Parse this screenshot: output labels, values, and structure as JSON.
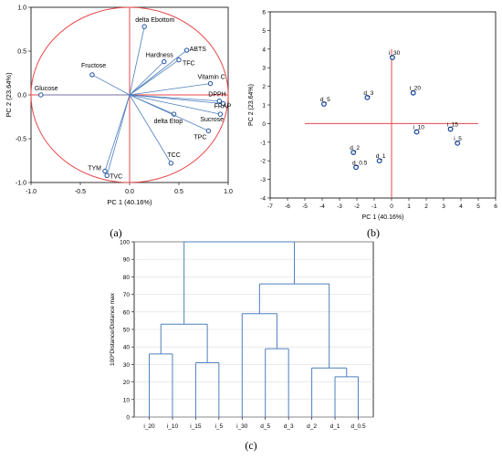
{
  "panel_labels": {
    "a": "(a)",
    "b": "(b)",
    "c": "(c)"
  },
  "colors": {
    "red": "#e8474b",
    "blue": "#1e4fa0",
    "line": "#4d7fbf",
    "grid": "#dddddd",
    "axis": "#000000"
  },
  "chart_data": [
    {
      "type": "scatter",
      "subtype": "pca-loadings",
      "xlabel": "PC 1 (40.16%)",
      "ylabel": "PC 2 (23.64%)",
      "xlim": [
        -1.0,
        1.0
      ],
      "ylim": [
        -1.0,
        1.0
      ],
      "xticks": [
        "-1.0",
        "-0.5",
        "0.0",
        "0.5",
        "1.0"
      ],
      "yticks": [
        "1.0",
        "0.5",
        "0.0",
        "-0.5",
        "-1.0"
      ],
      "unit_circle": true,
      "points": [
        {
          "label": "delta Ebottom",
          "x": 0.15,
          "y": 0.78
        },
        {
          "label": "ABTS",
          "x": 0.58,
          "y": 0.51
        },
        {
          "label": "Hardness",
          "x": 0.35,
          "y": 0.38
        },
        {
          "label": "TFC",
          "x": 0.5,
          "y": 0.4
        },
        {
          "label": "Fructose",
          "x": -0.38,
          "y": 0.23
        },
        {
          "label": "Vitamin C",
          "x": 0.82,
          "y": 0.13
        },
        {
          "label": "Glucose",
          "x": -0.9,
          "y": 0.0
        },
        {
          "label": "DPPH",
          "x": 0.91,
          "y": -0.07
        },
        {
          "label": "FRAP",
          "x": 0.95,
          "y": -0.1
        },
        {
          "label": "delta Etop",
          "x": 0.45,
          "y": -0.22
        },
        {
          "label": "Sucrose",
          "x": 0.92,
          "y": -0.22
        },
        {
          "label": "TPC",
          "x": 0.8,
          "y": -0.41
        },
        {
          "label": "TCC",
          "x": 0.42,
          "y": -0.78
        },
        {
          "label": "TYM",
          "x": -0.25,
          "y": -0.87
        },
        {
          "label": "TVC",
          "x": -0.23,
          "y": -0.92
        }
      ]
    },
    {
      "type": "scatter",
      "subtype": "pca-scores",
      "xlabel": "PC 1 (40.16%)",
      "ylabel": "PC 2 (23.64%)",
      "xlim": [
        -7,
        6
      ],
      "ylim": [
        -4,
        6
      ],
      "xticks": [
        "-7",
        "-6",
        "-5",
        "-4",
        "-3",
        "-2",
        "-1",
        "0",
        "1",
        "2",
        "3",
        "4",
        "5",
        "6"
      ],
      "yticks": [
        "6",
        "5",
        "4",
        "3",
        "2",
        "1",
        "0",
        "-1",
        "-2",
        "-3",
        "-4"
      ],
      "grid": true,
      "points": [
        {
          "label": "i_30",
          "x": 0.05,
          "y": 3.55
        },
        {
          "label": "i_20",
          "x": 1.25,
          "y": 1.65
        },
        {
          "label": "d_3",
          "x": -1.4,
          "y": 1.4
        },
        {
          "label": "d_5",
          "x": -3.9,
          "y": 1.05
        },
        {
          "label": "i_10",
          "x": 1.45,
          "y": -0.45
        },
        {
          "label": "i_15",
          "x": 3.4,
          "y": -0.3
        },
        {
          "label": "i_5",
          "x": 3.8,
          "y": -1.05
        },
        {
          "label": "d_2",
          "x": -2.2,
          "y": -1.55
        },
        {
          "label": "d_1",
          "x": -0.7,
          "y": -2.0
        },
        {
          "label": "d_0.5",
          "x": -2.05,
          "y": -2.35
        }
      ]
    },
    {
      "type": "dendrogram",
      "ylabel": "100*Distance/Distance max",
      "ylim": [
        0,
        100
      ],
      "yticks": [
        "100",
        "90",
        "80",
        "70",
        "60",
        "50",
        "40",
        "30",
        "20",
        "10",
        "0"
      ],
      "grid": true,
      "leaves": [
        "i_20",
        "i_10",
        "i_15",
        "i_5",
        "i_30",
        "d_5",
        "d_3",
        "d_2",
        "d_1",
        "d_0.5"
      ],
      "merges": [
        {
          "left": "d_1",
          "right": "d_0.5",
          "height": 23
        },
        {
          "left": "d_2",
          "right": "d_1+d_0.5",
          "height": 28
        },
        {
          "left": "i_15",
          "right": "i_5",
          "height": 31
        },
        {
          "left": "i_20",
          "right": "i_10",
          "height": 36
        },
        {
          "left": "d_5",
          "right": "d_3",
          "height": 39
        },
        {
          "left": "i_20+i_10",
          "right": "i_15+i_5",
          "height": 53
        },
        {
          "left": "i_30",
          "right": "d_5+d_3",
          "height": 59
        },
        {
          "left": "i_30+d_5+d_3",
          "right": "d_2+d_1+d_0.5",
          "height": 76
        },
        {
          "left": "i_20+i_10+i_15+i_5",
          "right": "i_30+d_5+d_3+d_2+d_1+d_0.5",
          "height": 100
        }
      ]
    }
  ]
}
